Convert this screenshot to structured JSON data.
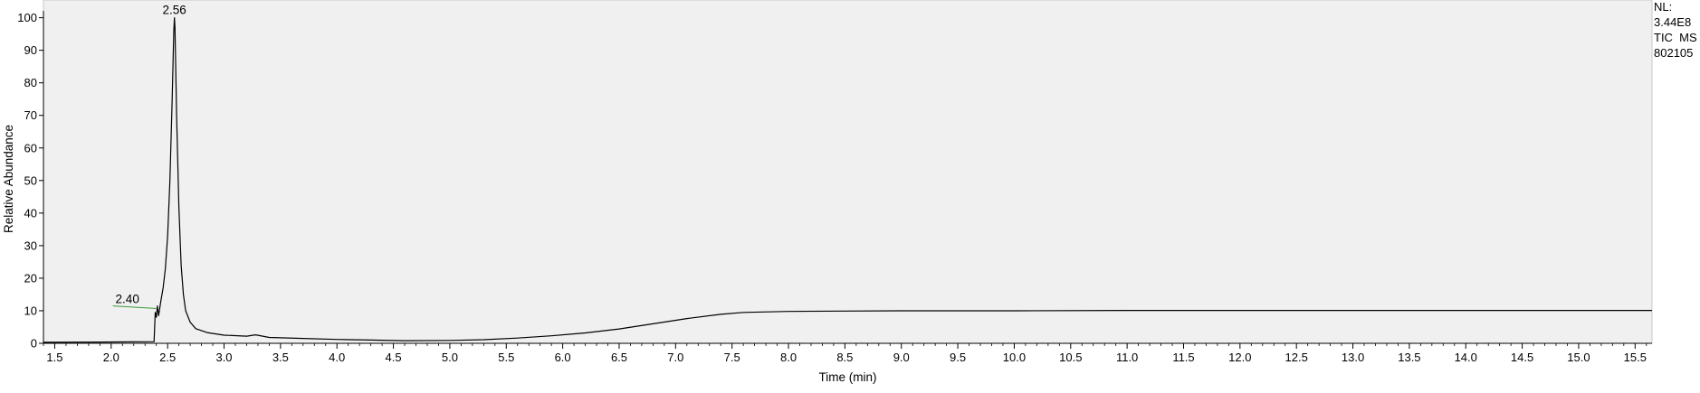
{
  "chart_data": {
    "type": "line",
    "title": "",
    "xlabel": "Time (min)",
    "ylabel": "Relative Abundance",
    "xlim": [
      1.4,
      15.65
    ],
    "ylim": [
      0,
      101
    ],
    "x_ticks": [
      1.5,
      2.0,
      2.5,
      3.0,
      3.5,
      4.0,
      4.5,
      5.0,
      5.5,
      6.0,
      6.5,
      7.0,
      7.5,
      8.0,
      8.5,
      9.0,
      9.5,
      10.0,
      10.5,
      11.0,
      11.5,
      12.0,
      12.5,
      13.0,
      13.5,
      14.0,
      14.5,
      15.0,
      15.5
    ],
    "y_ticks": [
      0,
      10,
      20,
      30,
      40,
      50,
      60,
      70,
      80,
      90,
      100
    ],
    "grid": false,
    "plot_background": "#f0f0f0",
    "line_color": "#000000",
    "series": [
      {
        "x": [
          1.4,
          1.9,
          2.38,
          2.39,
          2.4,
          2.41,
          2.42,
          2.44,
          2.46,
          2.48,
          2.5,
          2.52,
          2.54,
          2.555,
          2.56,
          2.565,
          2.58,
          2.6,
          2.62,
          2.64,
          2.66,
          2.7,
          2.75,
          2.85,
          3.0,
          3.2,
          3.28,
          3.4,
          3.7,
          4.0,
          4.3,
          4.6,
          5.0,
          5.3,
          5.6,
          5.9,
          6.2,
          6.5,
          6.8,
          7.1,
          7.4,
          7.6,
          8.0,
          8.5,
          9.0,
          9.5,
          10.0,
          11.0,
          12.0,
          13.0,
          14.0,
          15.0,
          15.65
        ],
        "y": [
          0.3,
          0.4,
          0.5,
          9.5,
          8.0,
          11.5,
          8.5,
          13.0,
          17.0,
          23.0,
          33.0,
          50.0,
          75.0,
          96.0,
          100.0,
          97.0,
          70.0,
          42.0,
          24.0,
          15.0,
          10.0,
          6.5,
          4.5,
          3.3,
          2.5,
          2.2,
          2.6,
          1.8,
          1.5,
          1.2,
          1.0,
          0.8,
          0.9,
          1.1,
          1.6,
          2.3,
          3.2,
          4.4,
          6.0,
          7.6,
          8.9,
          9.5,
          9.8,
          9.9,
          10.0,
          10.0,
          10.0,
          10.1,
          10.1,
          10.1,
          10.1,
          10.1,
          10.1
        ]
      }
    ],
    "annotations": [
      {
        "text": "2.56",
        "x": 2.56,
        "y": 100.0
      },
      {
        "text": "2.40",
        "x": 2.4,
        "y": 11.5
      }
    ],
    "info_box": [
      "NL:",
      "3.44E8",
      "TIC  MS",
      "802105"
    ]
  }
}
